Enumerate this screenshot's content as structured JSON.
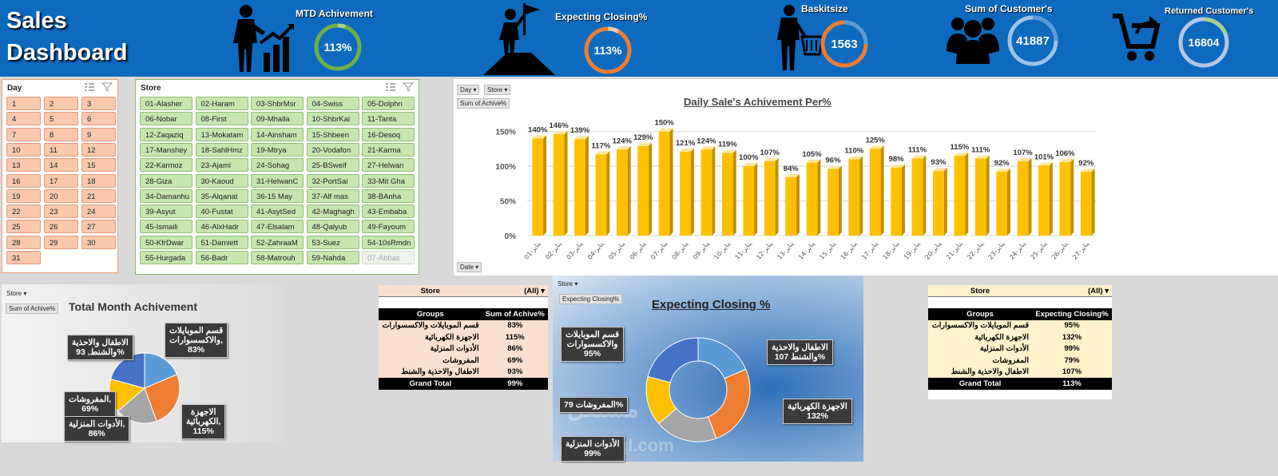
{
  "header": {
    "title_line1": "Sales",
    "title_line2": "Dashboard",
    "kpis": [
      {
        "label": "MTD Achivement",
        "value": "113%",
        "ring_color": "#70ad47"
      },
      {
        "label": "Expecting Closing%",
        "value": "113%",
        "ring_color": "#ed7d31"
      },
      {
        "label": "Baskitsize",
        "value": "1563",
        "ring_color": "#ed7d31"
      },
      {
        "label": "Sum of Customer's",
        "value": "41887",
        "ring_color": "#5b9bd5"
      },
      {
        "label": "Returned Customer's",
        "value": "16804",
        "ring_color": "#a9c3ea"
      }
    ]
  },
  "day_slicer": {
    "title": "Day",
    "items": [
      "1",
      "2",
      "3",
      "4",
      "5",
      "6",
      "7",
      "8",
      "9",
      "10",
      "11",
      "12",
      "13",
      "14",
      "15",
      "16",
      "17",
      "18",
      "19",
      "20",
      "21",
      "22",
      "23",
      "24",
      "25",
      "26",
      "27",
      "28",
      "29",
      "30",
      "31"
    ]
  },
  "store_slicer": {
    "title": "Store",
    "items": [
      "01-Alasher",
      "02-Haram",
      "03-ShbrMsr",
      "04-Swiss",
      "05-Dolphn",
      "06-Nobar",
      "08-First",
      "09-Mhalla",
      "10-ShbrKai",
      "11-Tanta",
      "12-Zaqaziq",
      "13-Mokatam",
      "14-Ainsham",
      "15-Shbeen",
      "16-Desoq",
      "17-Manshey",
      "18-SahlHmz",
      "19-Mtrya",
      "20-Vodafon",
      "21-Karma",
      "22-Karmoz",
      "23-Ajami",
      "24-Sohag",
      "25-BSweif",
      "27-Helwan",
      "28-Giza",
      "30-Kaoud",
      "31-HelwanC",
      "32-PortSai",
      "33-Mit Gha",
      "34-Damanhu",
      "35-Alqanat",
      "36-15 May",
      "37-Alf mas",
      "38-BAnha",
      "39-Asyut",
      "40-Fustat",
      "41-AsytSed",
      "42-Maghagh",
      "43-Embaba",
      "45-Ismaili",
      "46-AlxHadr",
      "47-Elsalam",
      "48-Qalyub",
      "49-Fayoum",
      "50-KfrDwar",
      "51-Damiett",
      "52-ZahraaM",
      "53-Suez",
      "54-10sRmdn",
      "55-Hurgada",
      "56-Badr",
      "58-Matrouh",
      "59-Nahda",
      "07-Abbas"
    ],
    "dimmed": [
      "07-Abbas"
    ]
  },
  "daily_chart": {
    "filter_day": "Day",
    "filter_store": "Store",
    "field": "Sum of Achive%",
    "date_button": "Date",
    "chart_data": {
      "type": "bar",
      "title": "Daily Sale's Achivement Per%",
      "categories": [
        "01-يناير",
        "02-يناير",
        "03-يناير",
        "04-يناير",
        "05-يناير",
        "06-يناير",
        "07-يناير",
        "08-يناير",
        "09-يناير",
        "10-يناير",
        "11-يناير",
        "12-يناير",
        "13-يناير",
        "14-يناير",
        "15-يناير",
        "16-يناير",
        "17-يناير",
        "18-يناير",
        "19-يناير",
        "20-يناير",
        "21-يناير",
        "22-يناير",
        "23-يناير",
        "24-يناير",
        "25-يناير",
        "26-يناير",
        "27-يناير"
      ],
      "values": [
        140,
        146,
        139,
        117,
        124,
        129,
        150,
        121,
        124,
        119,
        100,
        107,
        84,
        105,
        96,
        110,
        125,
        98,
        111,
        93,
        115,
        111,
        92,
        107,
        101,
        106,
        92
      ],
      "data_labels": [
        "140%",
        "146%",
        "139%",
        "117%",
        "124%",
        "129%",
        "150%",
        "121%",
        "124%",
        "119%",
        "100%",
        "107%",
        "84%",
        "105%",
        "96%",
        "110%",
        "125%",
        "98%",
        "111%",
        "93%",
        "115%",
        "111%",
        "92%",
        "107%",
        "101%",
        "106%",
        "92%"
      ],
      "y_ticks": [
        "0%",
        "50%",
        "100%",
        "150%"
      ],
      "y_tick_values": [
        0,
        50,
        100,
        150
      ],
      "ylim": [
        0,
        160
      ],
      "bar_color": "#ffc000",
      "grid": true
    }
  },
  "month_pie": {
    "filter": "Store",
    "field": "Sum of Achive%",
    "chart_data": {
      "type": "pie",
      "title": "Total Month Achivement",
      "slices": [
        {
          "label": "قسم الموبايلات والاكسسوارات",
          "text": "قسم الموبايلات\nوالاكسسوارات,\n83%",
          "value": 83,
          "color": "#5b9bd5"
        },
        {
          "label": "الاجهزة الكهربائية",
          "text": "الاجهزة\nالكهربائية,\n115%",
          "value": 115,
          "color": "#ed7d31"
        },
        {
          "label": "الأدوات المنزلية",
          "text": "الأدوات المنزلية,\n86%",
          "value": 86,
          "color": "#a5a5a5"
        },
        {
          "label": "المفروشات",
          "text": "المفروشات,\n69%",
          "value": 69,
          "color": "#ffc000"
        },
        {
          "label": "الاطفال والاحذية والشنط",
          "text": "الاطفال والاحذية\nوالشنط, 93%",
          "value": 93,
          "color": "#4472c4"
        }
      ]
    }
  },
  "pivot_achive": {
    "filter_label": "Store",
    "filter_value": "(All)",
    "col1": "Groups",
    "col2": "Sum of Achive%",
    "rows": [
      {
        "group": "قسم الموبايلات والاكسسوارات",
        "value": "83%"
      },
      {
        "group": "الاجهزة الكهربائية",
        "value": "115%"
      },
      {
        "group": "الأدوات المنزلية",
        "value": "86%"
      },
      {
        "group": "المفروشات",
        "value": "69%"
      },
      {
        "group": "الاطفال والاحذية والشنط",
        "value": "93%"
      }
    ],
    "total_label": "Grand Total",
    "total_value": "99%"
  },
  "closing_donut": {
    "filter": "Store",
    "field": "Expecting Closing%",
    "watermark": "مستقل",
    "watermark2": "mostaql.com",
    "chart_data": {
      "type": "pie",
      "title": "Expecting Closing %",
      "slices": [
        {
          "label": "قسم الموبايلات والاكسسوارات",
          "text": "قسم الموبايلات\nوالاكسسوارات\n95%",
          "value": 95,
          "color": "#5b9bd5"
        },
        {
          "label": "الاجهزة الكهربائية",
          "text": "الاجهزة الكهربائية\n132%",
          "value": 132,
          "color": "#ed7d31"
        },
        {
          "label": "الأدوات المنزلية",
          "text": "الأدوات المنزلية\n99%",
          "value": 99,
          "color": "#a5a5a5"
        },
        {
          "label": "المفروشات",
          "text": "المفروشات 79%",
          "value": 79,
          "color": "#ffc000"
        },
        {
          "label": "الاطفال والاحذية والشنط",
          "text": "الاطفال والاحذية\nوالشنط 107%",
          "value": 107,
          "color": "#4472c4"
        }
      ]
    }
  },
  "pivot_closing": {
    "filter_label": "Store",
    "filter_value": "(All)",
    "col1": "Groups",
    "col2": "Expecting Closing%",
    "rows": [
      {
        "group": "قسم الموبايلات والاكسسوارات",
        "value": "95%"
      },
      {
        "group": "الاجهزة الكهربائية",
        "value": "132%"
      },
      {
        "group": "الأدوات المنزلية",
        "value": "99%"
      },
      {
        "group": "المفروشات",
        "value": "79%"
      },
      {
        "group": "الاطفال والاحذية والشنط",
        "value": "107%"
      }
    ],
    "total_label": "Grand Total",
    "total_value": "113%"
  }
}
